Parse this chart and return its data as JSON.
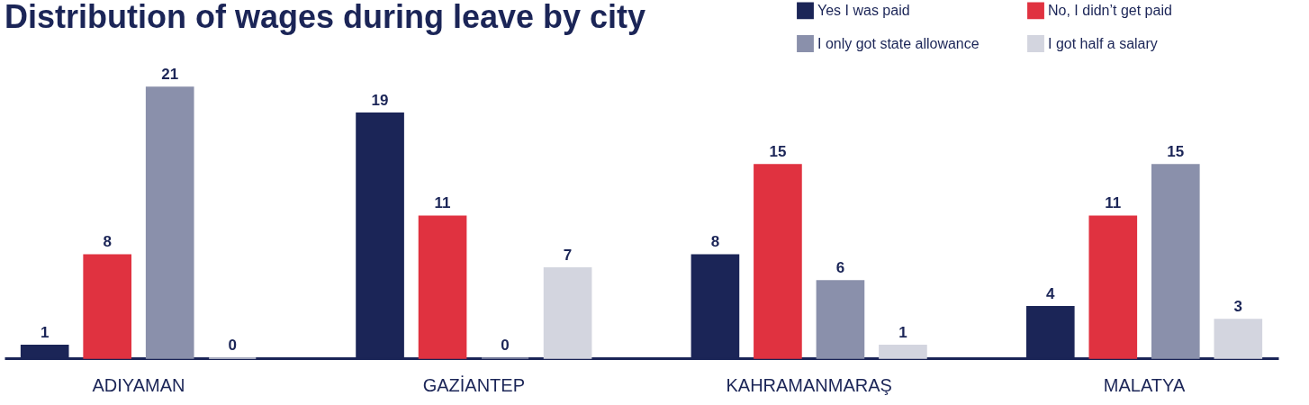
{
  "chart_data": {
    "type": "bar",
    "title": "Distribution of wages during leave by city",
    "categories": [
      "ADIYAMAN",
      "GAZİANTEP",
      "KAHRAMANMARAŞ",
      "MALATYA"
    ],
    "series": [
      {
        "name": "Yes I was paid",
        "color": "#1b2557",
        "values": [
          1,
          19,
          8,
          4
        ]
      },
      {
        "name": "No, I didn’t get paid",
        "color": "#e03240",
        "values": [
          8,
          11,
          15,
          11
        ]
      },
      {
        "name": "I only got state allowance",
        "color": "#8a90ab",
        "values": [
          21,
          0,
          6,
          15
        ]
      },
      {
        "name": "I got half a salary",
        "color": "#d3d5df",
        "values": [
          0,
          7,
          1,
          3
        ]
      }
    ],
    "data_labels": true,
    "legend": "top right",
    "grid": false
  }
}
